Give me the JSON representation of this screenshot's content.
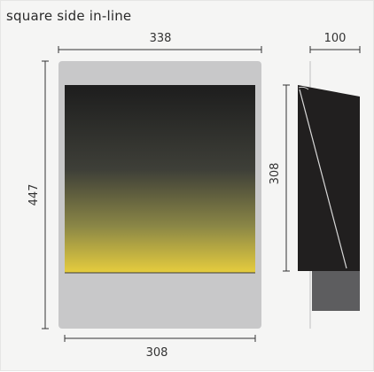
{
  "diagram": {
    "title": "square side in-line",
    "front_view": {
      "overall_width_label": "338",
      "overall_height_label": "447",
      "panel_width_label": "308"
    },
    "side_view": {
      "depth_label": "100",
      "panel_height_label": "308"
    },
    "colors": {
      "background": "#f5f5f4",
      "body_grey": "#c8c8c9",
      "gradient_top": "#1d1d1d",
      "gradient_mid": "#5e5f4a",
      "gradient_bottom": "#e6cd3e",
      "side_dark": "#211f1f",
      "post_grey": "#5d5d5f",
      "dimension_line": "#333333"
    }
  }
}
